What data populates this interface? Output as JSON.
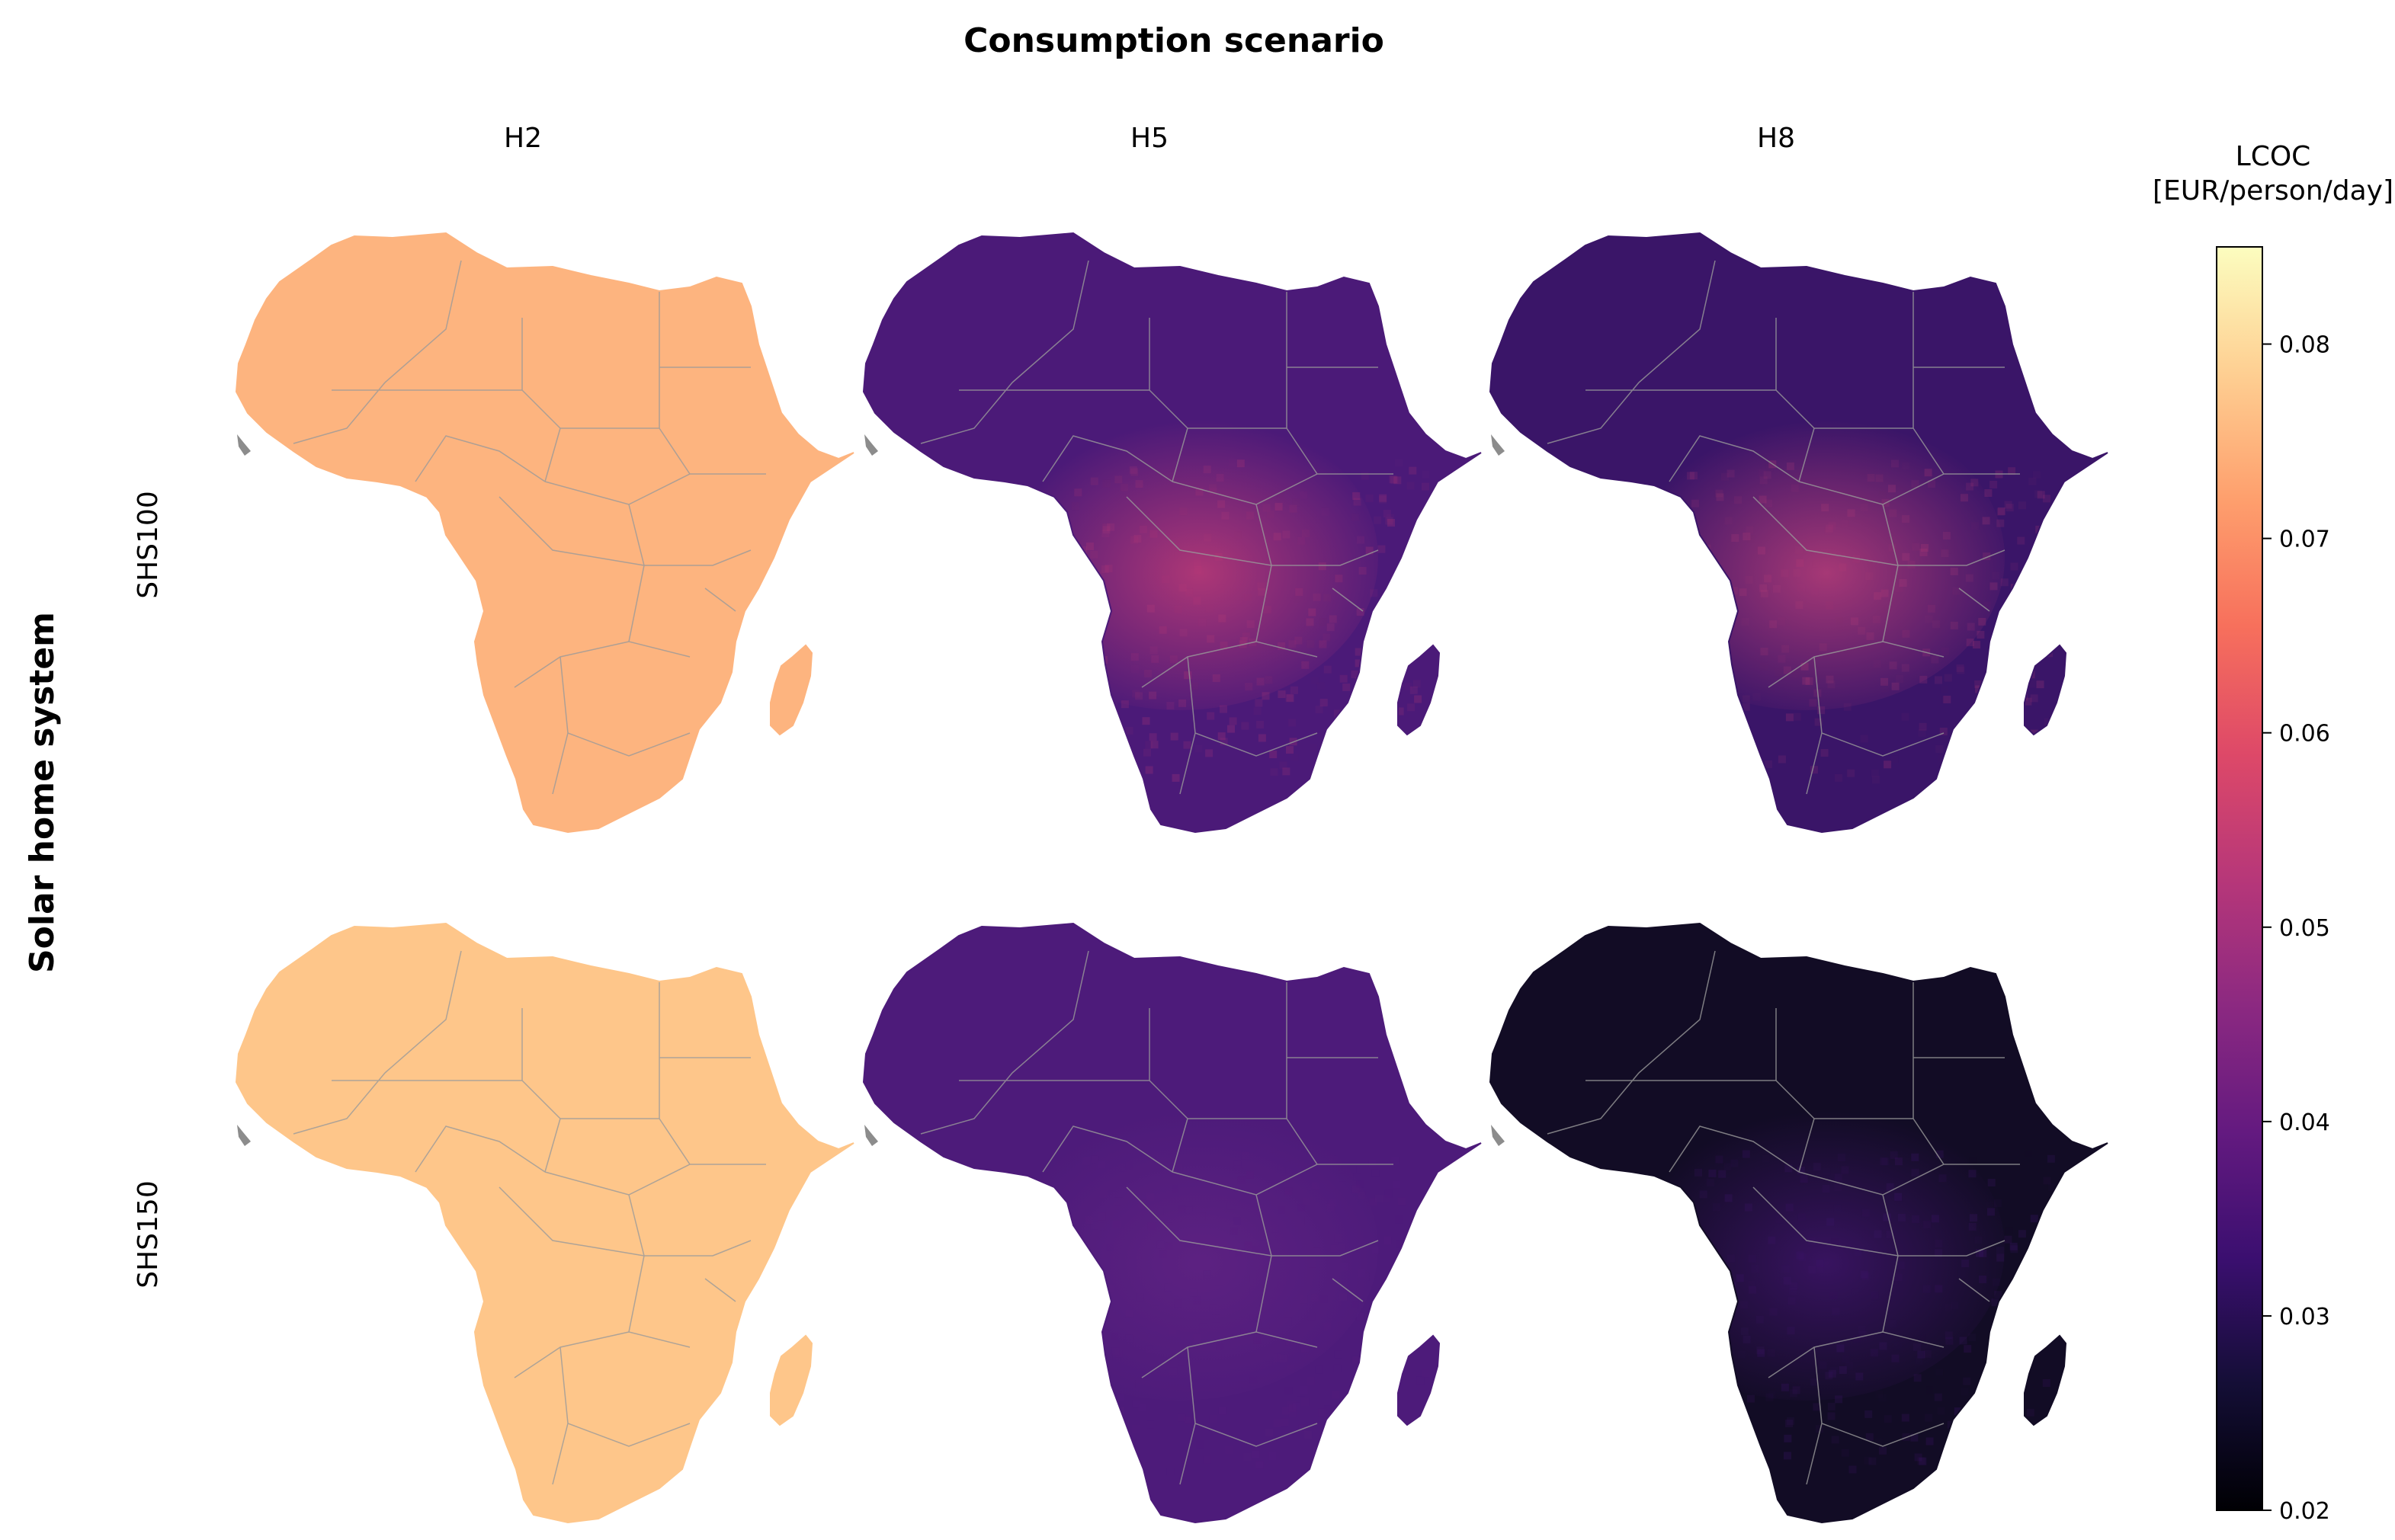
{
  "figure": {
    "title": "Consumption scenario",
    "row_group_label": "Solar home system",
    "columns": [
      "H2",
      "H5",
      "H8"
    ],
    "rows": [
      "SHS100",
      "SHS150"
    ]
  },
  "colorbar": {
    "label_line1": "LCOC",
    "label_line2": "[EUR/person/day]",
    "colormap": "magma",
    "range": [
      0.02,
      0.085
    ],
    "ticks": [
      "0.02",
      "0.03",
      "0.04",
      "0.05",
      "0.06",
      "0.07",
      "0.08"
    ],
    "tick_values": [
      0.02,
      0.03,
      0.04,
      0.05,
      0.06,
      0.07,
      0.08
    ]
  },
  "panels": [
    {
      "row": "SHS100",
      "col": "H2",
      "base_value": 0.076,
      "base_color": "#fdb47f",
      "high_value": 0.076,
      "high_color": "#fdb47f",
      "noise": 0.0
    },
    {
      "row": "SHS100",
      "col": "H5",
      "base_value": 0.035,
      "base_color": "#4b1a78",
      "high_value": 0.052,
      "high_color": "#b83a76",
      "noise": 0.25
    },
    {
      "row": "SHS100",
      "col": "H8",
      "base_value": 0.032,
      "base_color": "#3a1568",
      "high_value": 0.051,
      "high_color": "#b23c77",
      "noise": 0.25
    },
    {
      "row": "SHS150",
      "col": "H2",
      "base_value": 0.078,
      "base_color": "#fec68a",
      "high_value": 0.078,
      "high_color": "#fec68a",
      "noise": 0.0
    },
    {
      "row": "SHS150",
      "col": "H5",
      "base_value": 0.036,
      "base_color": "#4d1b7a",
      "high_value": 0.04,
      "high_color": "#5e2282",
      "noise": 0.15
    },
    {
      "row": "SHS150",
      "col": "H8",
      "base_value": 0.023,
      "base_color": "#120c25",
      "high_value": 0.033,
      "high_color": "#3c1466",
      "noise": 0.3
    }
  ],
  "colors": {
    "border": "#9a9a9a",
    "coast_grey": "#8c8c8c"
  }
}
